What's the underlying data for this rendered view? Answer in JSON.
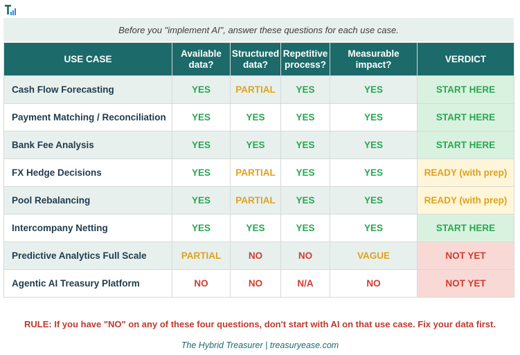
{
  "subtitle": "Before you \"implement AI\", answer these questions for each use case.",
  "colors": {
    "header_bg": "#1c6a6a",
    "yes": "#27a751",
    "partial": "#e0a11b",
    "no": "#d13b2f",
    "start_bg": "#d9f2df",
    "ready_bg": "#fff6d9",
    "notyet_bg": "#f9d9d6"
  },
  "table": {
    "headers": {
      "use_case": "USE CASE",
      "available_1": "Available",
      "available_2": "data?",
      "structured_1": "Structured",
      "structured_2": "data?",
      "repetitive_1": "Repetitive",
      "repetitive_2": "process?",
      "measurable_1": "Measurable",
      "measurable_2": "impact?",
      "verdict": "VERDICT"
    },
    "rows": [
      {
        "name": "Cash Flow Forecasting",
        "available": "YES",
        "structured": "PARTIAL",
        "repetitive": "YES",
        "measurable": "YES",
        "verdict": "START HERE"
      },
      {
        "name": "Payment Matching / Reconciliation",
        "available": "YES",
        "structured": "YES",
        "repetitive": "YES",
        "measurable": "YES",
        "verdict": "START HERE"
      },
      {
        "name": "Bank Fee Analysis",
        "available": "YES",
        "structured": "YES",
        "repetitive": "YES",
        "measurable": "YES",
        "verdict": "START HERE"
      },
      {
        "name": "FX Hedge Decisions",
        "available": "YES",
        "structured": "PARTIAL",
        "repetitive": "YES",
        "measurable": "YES",
        "verdict": "READY (with prep)"
      },
      {
        "name": "Pool Rebalancing",
        "available": "YES",
        "structured": "PARTIAL",
        "repetitive": "YES",
        "measurable": "YES",
        "verdict": "READY (with prep)"
      },
      {
        "name": "Intercompany Netting",
        "available": "YES",
        "structured": "YES",
        "repetitive": "YES",
        "measurable": "YES",
        "verdict": "START HERE"
      },
      {
        "name": "Predictive Analytics Full Scale",
        "available": "PARTIAL",
        "structured": "NO",
        "repetitive": "NO",
        "measurable": "VAGUE",
        "verdict": "NOT YET"
      },
      {
        "name": "Agentic AI Treasury Platform",
        "available": "NO",
        "structured": "NO",
        "repetitive": "N/A",
        "measurable": "NO",
        "verdict": "NOT YET"
      }
    ]
  },
  "rule": "RULE: If you have \"NO\" on any of these four questions, don't start with AI on that use case. Fix your data first.",
  "footer": "The Hybrid Treasurer | treasuryease.com"
}
